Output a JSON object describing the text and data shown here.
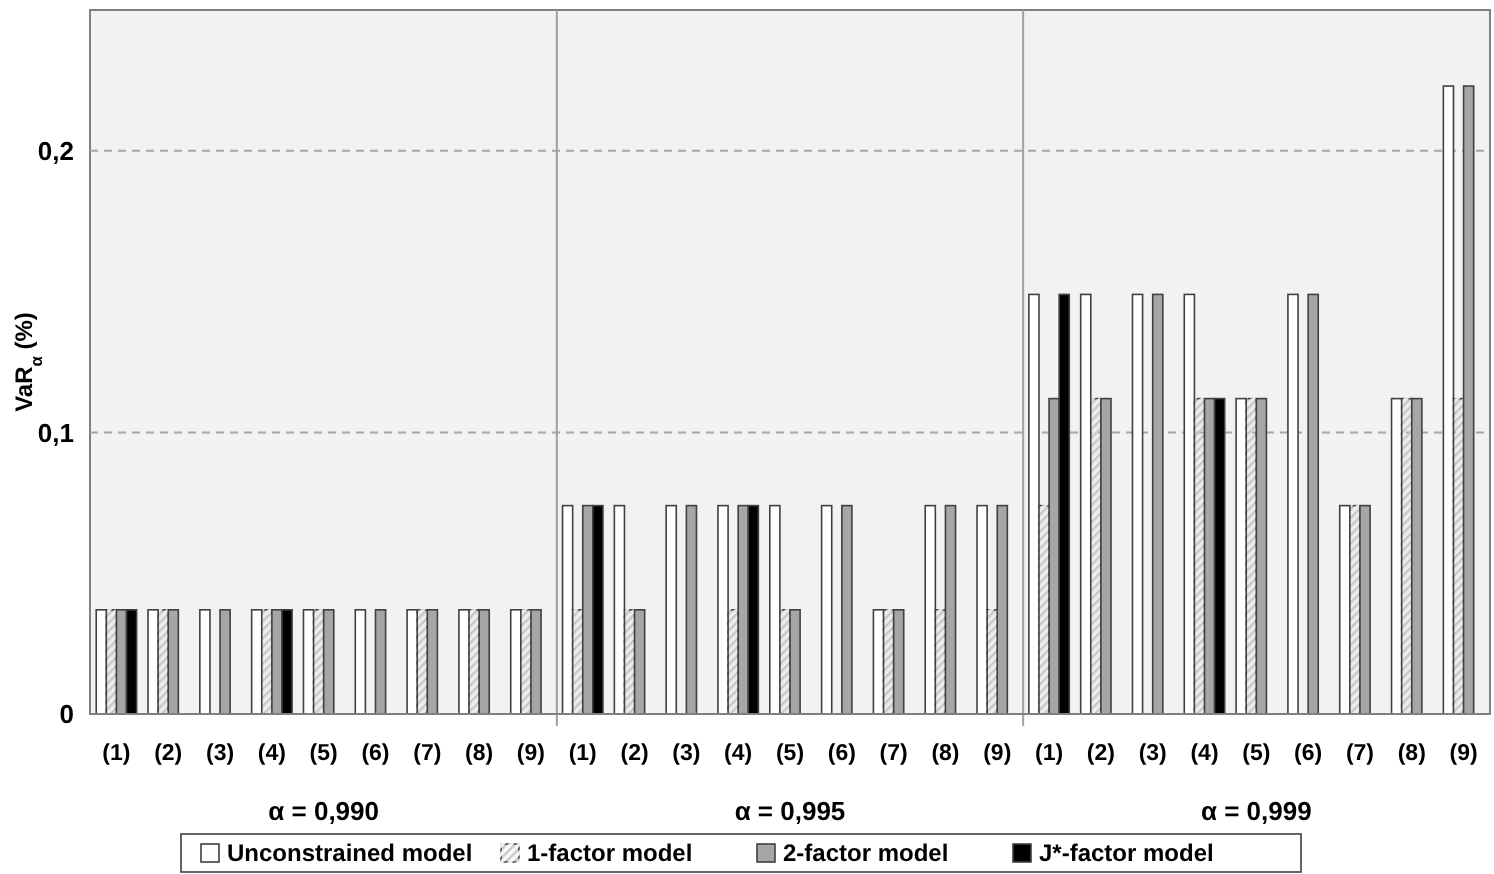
{
  "chart_data": {
    "type": "bar",
    "ylabel": "VaR$_{α}$ (%)",
    "categories": [
      "(1)",
      "(2)",
      "(3)",
      "(4)",
      "(5)",
      "(6)",
      "(7)",
      "(8)",
      "(9)",
      "(1)",
      "(2)",
      "(3)",
      "(4)",
      "(5)",
      "(6)",
      "(7)",
      "(8)",
      "(9)",
      "(1)",
      "(2)",
      "(3)",
      "(4)",
      "(5)",
      "(6)",
      "(7)",
      "(8)",
      "(9)"
    ],
    "series": [
      {
        "name": "Unconstrained model",
        "color": "#ffffff",
        "values": [
          0.037,
          0.037,
          0.037,
          0.037,
          0.037,
          0.037,
          0.037,
          0.037,
          0.037,
          0.074,
          0.074,
          0.074,
          0.074,
          0.074,
          0.074,
          0.037,
          0.074,
          0.074,
          0.149,
          0.149,
          0.149,
          0.149,
          0.112,
          0.149,
          0.074,
          0.112,
          0.223
        ]
      },
      {
        "name": "1-factor model",
        "color": "#c8c8c8",
        "values": [
          0.037,
          0.037,
          null,
          0.037,
          0.037,
          null,
          0.037,
          0.037,
          0.037,
          0.037,
          0.037,
          null,
          0.037,
          0.037,
          null,
          0.037,
          0.037,
          0.037,
          0.074,
          0.112,
          null,
          0.112,
          0.112,
          null,
          0.074,
          0.112,
          0.112
        ]
      },
      {
        "name": "2-factor model",
        "color": "#a6a6a6",
        "values": [
          0.037,
          0.037,
          0.037,
          0.037,
          0.037,
          0.037,
          0.037,
          0.037,
          0.037,
          0.074,
          0.037,
          0.074,
          0.074,
          0.037,
          0.074,
          0.037,
          0.074,
          0.074,
          0.112,
          0.112,
          0.149,
          0.112,
          0.112,
          0.149,
          0.074,
          0.112,
          0.223
        ]
      },
      {
        "name": "J*-factor model",
        "color": "#000000",
        "values": [
          0.037,
          null,
          null,
          0.037,
          null,
          null,
          null,
          null,
          null,
          0.074,
          null,
          null,
          0.074,
          null,
          null,
          null,
          null,
          null,
          0.149,
          null,
          null,
          0.112,
          null,
          null,
          null,
          null,
          null
        ]
      }
    ],
    "ylim": [
      0,
      0.25
    ],
    "yticks": [
      {
        "value": 0,
        "label": "0"
      },
      {
        "value": 0.1,
        "label": "0,1"
      },
      {
        "value": 0.2,
        "label": "0,2"
      }
    ],
    "grid": "y",
    "legend": "bottom",
    "annotations": [
      "α = 0,990",
      "α = 0,995",
      "α = 0,999"
    ]
  }
}
